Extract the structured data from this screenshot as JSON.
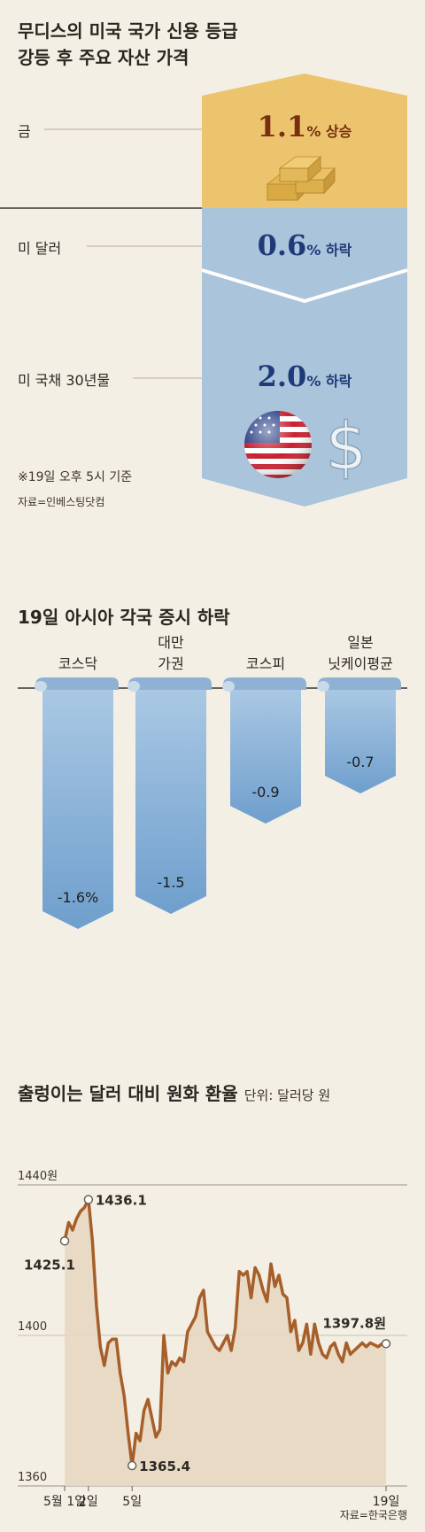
{
  "section1": {
    "title_line1": "무디스의 미국 국가 신용 등급",
    "title_line2": "강등 후 주요 자산 가격",
    "rows": [
      {
        "label": "금",
        "value": "1.1",
        "suffix": "% 상승",
        "color": "#7a2e12"
      },
      {
        "label": "미 달러",
        "value": "0.6",
        "suffix": "% 하락",
        "color": "#1f3a78"
      },
      {
        "label": "미 국채 30년물",
        "value": "2.0",
        "suffix": "% 하락",
        "color": "#1f3a78"
      }
    ],
    "note": "※19일 오후 5시 기준",
    "source": "자료=인베스팅닷컴",
    "colors": {
      "gold": "#ecc46e",
      "blue": "#a9c4db"
    },
    "icons": [
      "gold-bars-icon",
      "us-flag-globe-icon",
      "dollar-sign-icon"
    ]
  },
  "section2": {
    "title": "19일 아시아 각국 증시 하락"
  },
  "section3": {
    "title": "출렁이는 달러 대비 원화 환율",
    "unit": "단위: 달러당 원",
    "source": "자료=한국은행"
  },
  "chart_data": [
    {
      "type": "bar",
      "title": "19일 아시아 각국 증시 하락",
      "categories": [
        [
          "코스닥"
        ],
        [
          "대만",
          "가권"
        ],
        [
          "코스피"
        ],
        [
          "일본",
          "닛케이평균"
        ]
      ],
      "values": [
        -1.6,
        -1.5,
        -0.9,
        -0.7
      ],
      "value_labels": [
        "-1.6%",
        "-1.5",
        "-0.9",
        "-0.7"
      ],
      "ylim": [
        -1.7,
        0
      ],
      "color": "#7fa9d2"
    },
    {
      "type": "line",
      "title": "출렁이는 달러 대비 원화 환율",
      "ylabel": "단위: 달러당 원",
      "y_ticks": [
        {
          "value": 1440,
          "label": "1440원"
        },
        {
          "value": 1400,
          "label": "1400"
        },
        {
          "value": 1360,
          "label": "1360"
        }
      ],
      "ylim": [
        1360,
        1440
      ],
      "x_ticks": [
        {
          "index": 0,
          "label": "5월 1일"
        },
        {
          "index": 6,
          "label": "2일"
        },
        {
          "index": 17,
          "label": "5일"
        },
        {
          "index": 81,
          "label": "19일"
        }
      ],
      "annotations": [
        {
          "index": 0,
          "value": 1425.1,
          "label": "1425.1",
          "anchor": "left",
          "marker": true
        },
        {
          "index": 6,
          "value": 1436.1,
          "label": "1436.1",
          "anchor": "right",
          "marker": true
        },
        {
          "index": 17,
          "value": 1365.4,
          "label": "1365.4",
          "anchor": "right",
          "marker": true
        },
        {
          "index": 81,
          "value": 1397.8,
          "label": "1397.8원",
          "anchor": "above",
          "marker": true
        }
      ],
      "values": [
        1425.1,
        1430,
        1428,
        1431,
        1433,
        1434,
        1436.1,
        1425,
        1408,
        1397,
        1392,
        1398,
        1399,
        1399,
        1390,
        1384,
        1374,
        1365.4,
        1374,
        1372,
        1380,
        1383,
        1378,
        1373,
        1375,
        1400,
        1390,
        1393,
        1392,
        1394,
        1393,
        1401,
        1403,
        1405,
        1410,
        1412,
        1401,
        1399,
        1397,
        1396,
        1398,
        1400,
        1396,
        1402,
        1417,
        1416,
        1417,
        1410,
        1418,
        1416,
        1412,
        1409,
        1419,
        1413,
        1416,
        1411,
        1410,
        1401,
        1404,
        1396,
        1398,
        1403,
        1395,
        1403,
        1398,
        1395,
        1394,
        1397,
        1398,
        1395,
        1393,
        1398,
        1395,
        1396,
        1397,
        1398,
        1397,
        1398,
        1397.5,
        1397,
        1397.8,
        1397.8
      ],
      "fill_color": "#e7d7c0",
      "line_color": "#a65f2b"
    }
  ]
}
